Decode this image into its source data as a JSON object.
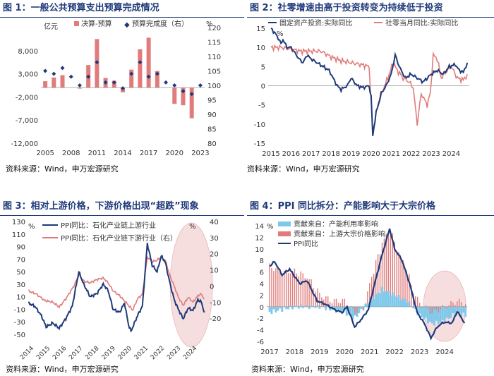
{
  "source_note": "资料来源：Wind，申万宏源研究",
  "chart_data": [
    {
      "id": "c1",
      "type": "bar+scatter",
      "title": "图 1：一般公共预算支出预算完成情况",
      "left_unit": "亿元",
      "right_unit": "%",
      "legend": [
        "决算-预算",
        "预算完成度（右）"
      ],
      "years": [
        2005,
        2006,
        2007,
        2008,
        2009,
        2010,
        2011,
        2012,
        2013,
        2014,
        2015,
        2016,
        2017,
        2018,
        2019,
        2020,
        2021,
        2022,
        2023
      ],
      "x_ticks": [
        "2005",
        "2008",
        "2011",
        "2014",
        "2017",
        "2020",
        "2023"
      ],
      "x_tick_years": [
        2005,
        2008,
        2011,
        2014,
        2017,
        2020,
        2023
      ],
      "bar_values": [
        1400,
        2200,
        2700,
        0,
        -200,
        4900,
        10500,
        2100,
        1500,
        -1000,
        3900,
        8300,
        10800,
        3600,
        0,
        -3500,
        -3800,
        -6600,
        0
      ],
      "completion_pct": [
        105,
        104,
        106,
        103,
        100,
        103,
        108,
        101,
        101,
        99,
        104,
        108,
        103,
        104,
        101,
        100,
        98,
        97,
        100
      ],
      "ylim_left": [
        -12000,
        13000
      ],
      "yticks_left": [
        "8,000",
        "3,000",
        "-2,000",
        "-7,000",
        "-12,000"
      ],
      "ytick_values_left": [
        8000,
        3000,
        -2000,
        -7000,
        -12000
      ],
      "ylim_right": [
        80,
        120
      ],
      "yticks_right": [
        "120",
        "115",
        "110",
        "105",
        "100",
        "95",
        "90",
        "85",
        "80"
      ],
      "ytick_values_right": [
        120,
        115,
        110,
        105,
        100,
        95,
        90,
        85,
        80
      ],
      "colors": {
        "bar": "#e07c7c",
        "marker": "#1f3a7a"
      }
    },
    {
      "id": "c2",
      "type": "line",
      "title": "图 2：社零增速由高于投资转变为持续低于投资",
      "unit": "%",
      "series_names": [
        "固定资产投资:实际同比",
        "社零当月同比:实际同比"
      ],
      "x_ticks": [
        "2015",
        "2016",
        "2017",
        "2018",
        "2019",
        "2020",
        "2021",
        "2022",
        "2023",
        "2024"
      ],
      "x_tick_years": [
        2015,
        2016,
        2017,
        2018,
        2019,
        2020,
        2021,
        2022,
        2023,
        2024
      ],
      "ylim": [
        -15,
        15
      ],
      "yticks": [
        "15",
        "10",
        "5",
        "0",
        "-5",
        "-10",
        "-15"
      ],
      "ytick_values": [
        15,
        10,
        5,
        0,
        -5,
        -10,
        -15
      ],
      "investment": [
        [
          2015.0,
          15
        ],
        [
          2015.3,
          13
        ],
        [
          2015.5,
          11
        ],
        [
          2015.6,
          12
        ],
        [
          2015.8,
          10
        ],
        [
          2016.0,
          10
        ],
        [
          2016.2,
          8.5
        ],
        [
          2016.4,
          7
        ],
        [
          2016.6,
          6
        ],
        [
          2016.8,
          8
        ],
        [
          2017.0,
          7
        ],
        [
          2017.3,
          6
        ],
        [
          2017.6,
          5
        ],
        [
          2017.9,
          4
        ],
        [
          2018.1,
          2
        ],
        [
          2018.3,
          0
        ],
        [
          2018.5,
          -1
        ],
        [
          2018.8,
          0
        ],
        [
          2019.0,
          2
        ],
        [
          2019.3,
          0
        ],
        [
          2019.6,
          -0.5
        ],
        [
          2019.9,
          0
        ],
        [
          2020.0,
          -3
        ],
        [
          2020.08,
          -13
        ],
        [
          2020.25,
          -7
        ],
        [
          2020.5,
          -2
        ],
        [
          2020.75,
          0
        ],
        [
          2021.0,
          3
        ],
        [
          2021.2,
          8
        ],
        [
          2021.4,
          5
        ],
        [
          2021.7,
          2
        ],
        [
          2022.0,
          3
        ],
        [
          2022.3,
          2
        ],
        [
          2022.6,
          1
        ],
        [
          2023.0,
          3
        ],
        [
          2023.3,
          4
        ],
        [
          2023.6,
          3
        ],
        [
          2023.9,
          5
        ],
        [
          2024.2,
          5.5
        ],
        [
          2024.4,
          4
        ],
        [
          2024.6,
          3.5
        ],
        [
          2024.8,
          6
        ]
      ],
      "retail": [
        [
          2015.0,
          10
        ],
        [
          2015.5,
          10
        ],
        [
          2016.0,
          9.5
        ],
        [
          2016.5,
          9
        ],
        [
          2017.0,
          9
        ],
        [
          2017.5,
          9
        ],
        [
          2018.0,
          7.5
        ],
        [
          2018.5,
          6.5
        ],
        [
          2019.0,
          6
        ],
        [
          2019.5,
          5.5
        ],
        [
          2019.9,
          5
        ],
        [
          2020.08,
          -12
        ],
        [
          2020.3,
          -6
        ],
        [
          2020.6,
          -1
        ],
        [
          2020.9,
          3
        ],
        [
          2021.1,
          6
        ],
        [
          2021.3,
          4
        ],
        [
          2021.6,
          2
        ],
        [
          2021.9,
          1
        ],
        [
          2022.1,
          -0.5
        ],
        [
          2022.3,
          -10
        ],
        [
          2022.5,
          -2
        ],
        [
          2022.8,
          -5
        ],
        [
          2022.95,
          -2
        ],
        [
          2023.1,
          8
        ],
        [
          2023.3,
          7
        ],
        [
          2023.5,
          2
        ],
        [
          2023.8,
          4
        ],
        [
          2024.0,
          5
        ],
        [
          2024.3,
          2
        ],
        [
          2024.6,
          1.5
        ],
        [
          2024.8,
          3
        ]
      ],
      "colors": {
        "investment": "#1f3a7a",
        "retail": "#e07c7c"
      }
    },
    {
      "id": "c3",
      "type": "line",
      "title": "图 3：相对上游价格，下游价格出现“超跌”现象",
      "left_unit": "%",
      "right_unit": "%",
      "series_names": [
        "PPI同比：石化产业链上游行业",
        "PPI同比：石化产业链下游行业（右）"
      ],
      "x_ticks": [
        "2014",
        "2015",
        "2016",
        "2017",
        "2018",
        "2019",
        "2020",
        "2021",
        "2022",
        "2023",
        "2024"
      ],
      "x_tick_years": [
        2014,
        2015,
        2016,
        2017,
        2018,
        2019,
        2020,
        2021,
        2022,
        2023,
        2024
      ],
      "ylim_left": [
        -50,
        130
      ],
      "yticks_left": [
        "130",
        "110",
        "90",
        "70",
        "50",
        "30",
        "10",
        "-10",
        "-30",
        "-50"
      ],
      "ytick_values_left": [
        130,
        110,
        90,
        70,
        50,
        30,
        10,
        -10,
        -30,
        -50
      ],
      "ylim_right": [
        -30,
        40
      ],
      "yticks_right": [
        "40",
        "30",
        "20",
        "10",
        "0",
        "-10",
        "-20"
      ],
      "ytick_values_right": [
        40,
        30,
        20,
        10,
        0,
        -10,
        -20
      ],
      "upstream": [
        [
          2014.0,
          0
        ],
        [
          2014.4,
          -5
        ],
        [
          2014.8,
          -20
        ],
        [
          2015.1,
          -38
        ],
        [
          2015.5,
          -32
        ],
        [
          2015.9,
          -40
        ],
        [
          2016.3,
          -25
        ],
        [
          2016.7,
          -5
        ],
        [
          2017.1,
          50
        ],
        [
          2017.4,
          30
        ],
        [
          2017.8,
          10
        ],
        [
          2018.2,
          15
        ],
        [
          2018.6,
          30
        ],
        [
          2018.9,
          20
        ],
        [
          2019.2,
          -10
        ],
        [
          2019.6,
          -15
        ],
        [
          2019.9,
          0
        ],
        [
          2020.15,
          -35
        ],
        [
          2020.3,
          -45
        ],
        [
          2020.7,
          -20
        ],
        [
          2021.0,
          -5
        ],
        [
          2021.3,
          95
        ],
        [
          2021.6,
          60
        ],
        [
          2021.9,
          50
        ],
        [
          2022.15,
          75
        ],
        [
          2022.4,
          65
        ],
        [
          2022.7,
          30
        ],
        [
          2022.95,
          5
        ],
        [
          2023.2,
          -10
        ],
        [
          2023.5,
          -25
        ],
        [
          2023.8,
          -8
        ],
        [
          2024.1,
          -12
        ],
        [
          2024.4,
          5
        ],
        [
          2024.6,
          2
        ],
        [
          2024.8,
          -15
        ]
      ],
      "downstream": [
        [
          2014.0,
          -3
        ],
        [
          2014.5,
          -5
        ],
        [
          2015.0,
          -9
        ],
        [
          2015.5,
          -10
        ],
        [
          2015.9,
          -13
        ],
        [
          2016.3,
          -8
        ],
        [
          2016.8,
          0
        ],
        [
          2017.1,
          7
        ],
        [
          2017.4,
          3
        ],
        [
          2017.8,
          2
        ],
        [
          2018.2,
          4
        ],
        [
          2018.6,
          5
        ],
        [
          2018.9,
          2
        ],
        [
          2019.2,
          -3
        ],
        [
          2019.6,
          -6
        ],
        [
          2020.15,
          -12
        ],
        [
          2020.4,
          -15
        ],
        [
          2020.7,
          -8
        ],
        [
          2021.0,
          -5
        ],
        [
          2021.3,
          18
        ],
        [
          2021.6,
          15
        ],
        [
          2021.9,
          16
        ],
        [
          2022.15,
          18
        ],
        [
          2022.4,
          16
        ],
        [
          2022.7,
          6
        ],
        [
          2022.95,
          0
        ],
        [
          2023.2,
          -7
        ],
        [
          2023.5,
          -12
        ],
        [
          2023.8,
          -7
        ],
        [
          2024.1,
          -10
        ],
        [
          2024.4,
          -6
        ],
        [
          2024.6,
          -5
        ],
        [
          2024.8,
          -8
        ]
      ],
      "colors": {
        "upstream": "#1f3a7a",
        "downstream": "#e07c7c",
        "highlight": "#f7dede"
      }
    },
    {
      "id": "c4",
      "type": "bar+line",
      "title": "图 4：PPI 同比拆分：产能影响大于大宗价格",
      "unit": "%",
      "legend": [
        "贡献来自：产能利用率影响",
        "贡献来自：上游大宗价格影响",
        "PPI同比"
      ],
      "x_ticks": [
        "2017",
        "2018",
        "2019",
        "2020",
        "2021",
        "2022",
        "2023",
        "2024"
      ],
      "x_tick_years": [
        2017,
        2018,
        2019,
        2020,
        2021,
        2022,
        2023,
        2024
      ],
      "ylim": [
        -6,
        14
      ],
      "yticks": [
        "14",
        "12",
        "10",
        "8",
        "6",
        "4",
        "2",
        "0",
        "-2",
        "-4",
        "-6"
      ],
      "ytick_values": [
        14,
        12,
        10,
        8,
        6,
        4,
        2,
        0,
        -2,
        -4,
        -6
      ],
      "ppi": [
        [
          2017.0,
          7
        ],
        [
          2017.2,
          7.8
        ],
        [
          2017.5,
          5.5
        ],
        [
          2017.8,
          6.5
        ],
        [
          2018.2,
          4
        ],
        [
          2018.5,
          4.5
        ],
        [
          2018.9,
          1
        ],
        [
          2019.2,
          0.5
        ],
        [
          2019.6,
          -0.5
        ],
        [
          2019.9,
          -1
        ],
        [
          2020.1,
          0
        ],
        [
          2020.4,
          -3.5
        ],
        [
          2020.7,
          -2
        ],
        [
          2020.95,
          -0.5
        ],
        [
          2021.2,
          4
        ],
        [
          2021.5,
          9
        ],
        [
          2021.8,
          13.5
        ],
        [
          2022.0,
          10
        ],
        [
          2022.3,
          8
        ],
        [
          2022.6,
          4
        ],
        [
          2022.9,
          -1
        ],
        [
          2023.2,
          -3
        ],
        [
          2023.45,
          -5.4
        ],
        [
          2023.7,
          -3.5
        ],
        [
          2023.95,
          -2.7
        ],
        [
          2024.3,
          -2.8
        ],
        [
          2024.5,
          -0.8
        ],
        [
          2024.8,
          -2.8
        ]
      ],
      "capacity_contrib": [
        [
          2017.0,
          -1
        ],
        [
          2017.5,
          -0.5
        ],
        [
          2018.0,
          0
        ],
        [
          2018.5,
          0
        ],
        [
          2019.0,
          0
        ],
        [
          2019.5,
          -0.5
        ],
        [
          2020.0,
          -1
        ],
        [
          2020.4,
          -2
        ],
        [
          2020.8,
          0
        ],
        [
          2021.0,
          1
        ],
        [
          2021.5,
          3
        ],
        [
          2022.0,
          2
        ],
        [
          2022.5,
          1
        ],
        [
          2023.0,
          -1.5
        ],
        [
          2023.5,
          -3
        ],
        [
          2024.0,
          -2.5
        ],
        [
          2024.5,
          -1
        ],
        [
          2024.8,
          -1.5
        ]
      ],
      "commodity_contrib": [
        [
          2017.0,
          7
        ],
        [
          2017.5,
          6
        ],
        [
          2018.0,
          6
        ],
        [
          2018.5,
          5
        ],
        [
          2019.0,
          2
        ],
        [
          2019.5,
          1
        ],
        [
          2020.0,
          1
        ],
        [
          2020.4,
          -1
        ],
        [
          2020.8,
          0
        ],
        [
          2021.0,
          3
        ],
        [
          2021.5,
          8
        ],
        [
          2021.8,
          11
        ],
        [
          2022.0,
          9
        ],
        [
          2022.5,
          5
        ],
        [
          2023.0,
          0.5
        ],
        [
          2023.5,
          -1
        ],
        [
          2024.0,
          0
        ],
        [
          2024.5,
          1
        ],
        [
          2024.8,
          0.5
        ]
      ],
      "colors": {
        "capacity": "#7ec8ea",
        "commodity": "#e07c7c",
        "ppi": "#1f3a7a",
        "highlight": "#f7dede"
      }
    }
  ]
}
